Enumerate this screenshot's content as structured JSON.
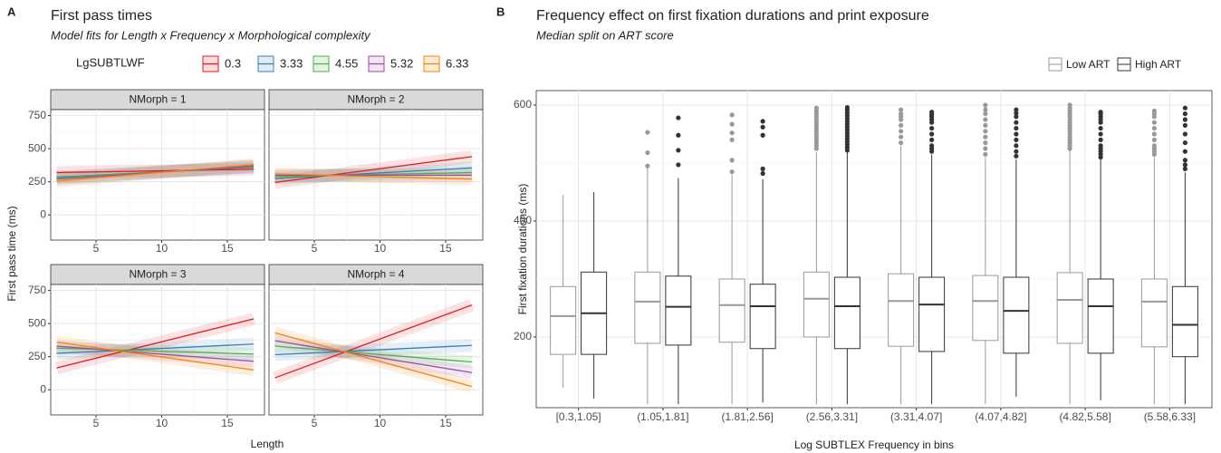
{
  "chart_data": [
    {
      "type": "facet-line",
      "panel_label": "A",
      "title": "First pass times",
      "subtitle": "Model fits for Length x Frequency x Morphological complexity",
      "legend_title": "LgSUBTLWF",
      "x_label": "Length",
      "y_label": "First pass time (ms)",
      "xlim": [
        1.55,
        17.83
      ],
      "xticks": [
        5,
        10,
        15
      ],
      "ylim": [
        -190,
        795
      ],
      "yticks": [
        0,
        250,
        500,
        750
      ],
      "grid": true,
      "series": [
        {
          "name": "0.3",
          "color": "#e41a1c"
        },
        {
          "name": "3.33",
          "color": "#377eb8"
        },
        {
          "name": "4.55",
          "color": "#4daf4a"
        },
        {
          "name": "5.32",
          "color": "#984ea3"
        },
        {
          "name": "6.33",
          "color": "#ff7f00"
        }
      ],
      "x": [
        2,
        17
      ],
      "facets": [
        {
          "title": "NMorph = 1",
          "values": [
            [
              320,
              345
            ],
            [
              285,
              360
            ],
            [
              280,
              365
            ],
            [
              270,
              370
            ],
            [
              255,
              380
            ]
          ]
        },
        {
          "title": "NMorph = 2",
          "values": [
            [
              245,
              440
            ],
            [
              275,
              355
            ],
            [
              290,
              320
            ],
            [
              300,
              300
            ],
            [
              310,
              270
            ]
          ]
        },
        {
          "title": "NMorph = 3",
          "values": [
            [
              165,
              535
            ],
            [
              275,
              345
            ],
            [
              315,
              270
            ],
            [
              330,
              215
            ],
            [
              360,
              150
            ]
          ]
        },
        {
          "title": "NMorph = 4",
          "values": [
            [
              90,
              640
            ],
            [
              265,
              335
            ],
            [
              330,
              210
            ],
            [
              370,
              130
            ],
            [
              430,
              25
            ]
          ]
        }
      ]
    },
    {
      "type": "box",
      "panel_label": "B",
      "title": "Frequency effect on first fixation durations and print exposure",
      "subtitle": "Median split on ART score",
      "x_label": "Log SUBTLEX Frequency in bins",
      "y_label": "First fixation durations (ms)",
      "ylim": [
        78,
        625
      ],
      "yticks": [
        200,
        400,
        600
      ],
      "grid": true,
      "categories": [
        "[0.3,1.05]",
        "(1.05,1.81]",
        "(1.81,2.56]",
        "(2.56,3.31]",
        "(3.31,4.07]",
        "(4.07,4.82]",
        "(4.82,5.58]",
        "(5.58,6.33]"
      ],
      "series": [
        {
          "name": "Low ART",
          "color": "#999999",
          "boxes": [
            {
              "low": 112,
              "q1": 170,
              "median": 236,
              "q3": 287,
              "high": 445,
              "outliers": []
            },
            {
              "low": 84,
              "q1": 189,
              "median": 261,
              "q3": 312,
              "high": 492,
              "outliers": [
                495,
                518,
                553
              ]
            },
            {
              "low": 84,
              "q1": 191,
              "median": 255,
              "q3": 300,
              "high": 480,
              "outliers": [
                485,
                505,
                540,
                552,
                567,
                583
              ]
            },
            {
              "low": 84,
              "q1": 200,
              "median": 266,
              "q3": 312,
              "high": 519,
              "outliers": [
                525,
                530,
                535,
                540,
                545,
                550,
                555,
                560,
                565,
                570,
                575,
                580,
                585,
                590,
                595
              ]
            },
            {
              "low": 84,
              "q1": 184,
              "median": 262,
              "q3": 309,
              "high": 530,
              "outliers": [
                535,
                545,
                555,
                565,
                575,
                580,
                585,
                592
              ]
            },
            {
              "low": 84,
              "q1": 194,
              "median": 262,
              "q3": 306,
              "high": 510,
              "outliers": [
                515,
                525,
                535,
                545,
                555,
                565,
                575,
                585,
                592,
                600
              ]
            },
            {
              "low": 84,
              "q1": 189,
              "median": 264,
              "q3": 311,
              "high": 522,
              "outliers": [
                525,
                530,
                535,
                540,
                545,
                550,
                555,
                560,
                565,
                570,
                575,
                580,
                585,
                590,
                595,
                600
              ]
            },
            {
              "low": 84,
              "q1": 183,
              "median": 261,
              "q3": 300,
              "high": 510,
              "outliers": [
                515,
                520,
                525,
                530,
                540,
                550,
                560,
                570,
                580,
                585,
                590
              ]
            }
          ]
        },
        {
          "name": "High ART",
          "color": "#333333",
          "boxes": [
            {
              "low": 94,
              "q1": 170,
              "median": 241,
              "q3": 312,
              "high": 450,
              "outliers": []
            },
            {
              "low": 84,
              "q1": 186,
              "median": 252,
              "q3": 305,
              "high": 474,
              "outliers": [
                497,
                522,
                548,
                578
              ]
            },
            {
              "low": 87,
              "q1": 180,
              "median": 253,
              "q3": 291,
              "high": 472,
              "outliers": [
                482,
                490,
                548,
                562,
                572
              ]
            },
            {
              "low": 84,
              "q1": 180,
              "median": 253,
              "q3": 303,
              "high": 519,
              "outliers": [
                522,
                527,
                532,
                537,
                542,
                547,
                552,
                557,
                562,
                567,
                572,
                577,
                582,
                587,
                592,
                596
              ]
            },
            {
              "low": 84,
              "q1": 175,
              "median": 256,
              "q3": 303,
              "high": 515,
              "outliers": [
                520,
                525,
                530,
                540,
                550,
                560,
                570,
                575,
                580,
                584,
                588
              ]
            },
            {
              "low": 97,
              "q1": 172,
              "median": 245,
              "q3": 303,
              "high": 506,
              "outliers": [
                512,
                520,
                530,
                540,
                550,
                560,
                570,
                580,
                586,
                592
              ]
            },
            {
              "low": 91,
              "q1": 172,
              "median": 253,
              "q3": 300,
              "high": 506,
              "outliers": [
                510,
                515,
                520,
                525,
                530,
                540,
                550,
                560,
                570,
                575,
                580,
                585,
                588
              ]
            },
            {
              "low": 84,
              "q1": 166,
              "median": 221,
              "q3": 287,
              "high": 484,
              "outliers": [
                490,
                497,
                505,
                520,
                535,
                550,
                565,
                575,
                585,
                595
              ]
            }
          ]
        }
      ]
    }
  ]
}
